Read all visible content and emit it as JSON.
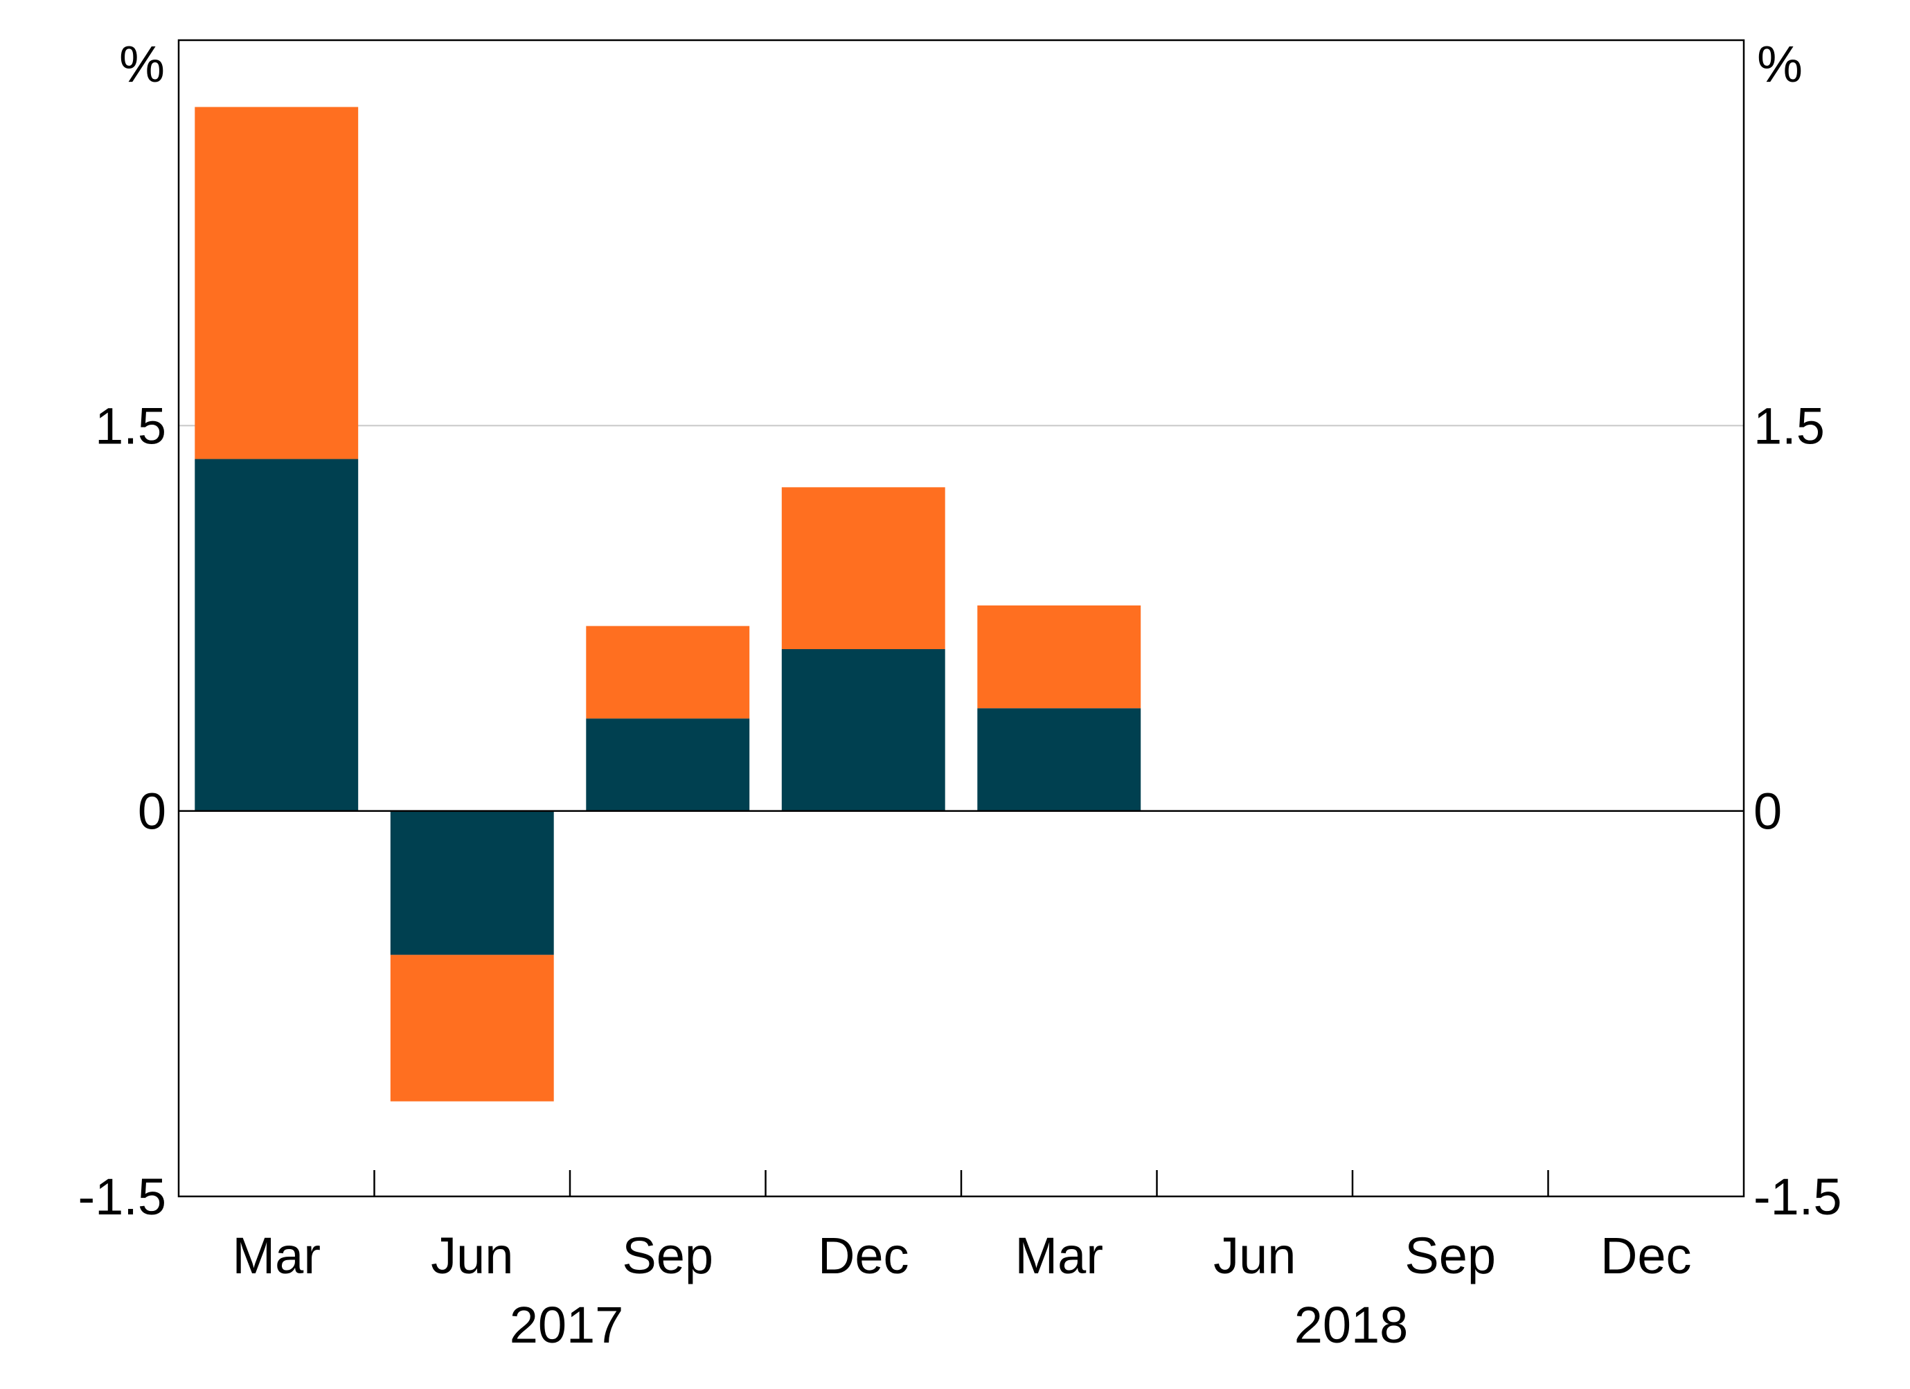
{
  "chart_data": {
    "type": "bar",
    "stacked": true,
    "categories": [
      "Mar 2017",
      "Jun 2017",
      "Sep 2017",
      "Dec 2017",
      "Mar 2018",
      "Jun 2018",
      "Sep 2018",
      "Dec 2018"
    ],
    "x_tick_labels": [
      "Mar",
      "Jun",
      "Sep",
      "Dec",
      "Mar",
      "Jun",
      "Sep",
      "Dec"
    ],
    "year_labels": [
      "2017",
      "2018"
    ],
    "series": [
      {
        "values": [
          1.37,
          -0.56,
          0.36,
          0.63,
          0.4,
          null,
          null,
          null
        ],
        "color": "#004050"
      },
      {
        "values": [
          1.37,
          -0.57,
          0.36,
          0.63,
          0.4,
          null,
          null,
          null
        ],
        "color": "#FF6F20"
      }
    ],
    "y_axis": {
      "left_unit": "%",
      "right_unit": "%",
      "ylim": [
        -1.5,
        3.0
      ],
      "ticks": [
        -1.5,
        0,
        1.5
      ],
      "tick_labels": [
        "-1.5",
        "0",
        "1.5"
      ]
    },
    "grid": true,
    "legend": false
  }
}
